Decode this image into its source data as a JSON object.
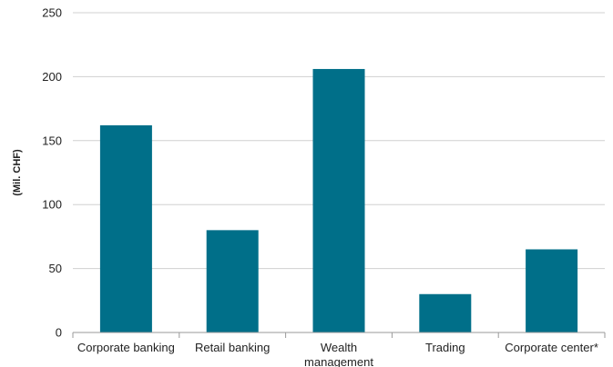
{
  "chart_data": {
    "type": "bar",
    "categories": [
      "Corporate banking",
      "Retail banking",
      "Wealth management",
      "Trading",
      "Corporate center*"
    ],
    "category_lines": [
      [
        "Corporate banking"
      ],
      [
        "Retail banking"
      ],
      [
        "Wealth",
        "management"
      ],
      [
        "Trading"
      ],
      [
        "Corporate center*"
      ]
    ],
    "values": [
      162,
      80,
      206,
      30,
      65
    ],
    "title": "",
    "xlabel": "",
    "ylabel": "(Mil. CHF)",
    "ylim": [
      0,
      250
    ],
    "yticks": [
      0,
      50,
      100,
      150,
      200,
      250
    ],
    "grid": true,
    "bar_color": "#006f89",
    "grid_color": "#d0d0d0"
  }
}
